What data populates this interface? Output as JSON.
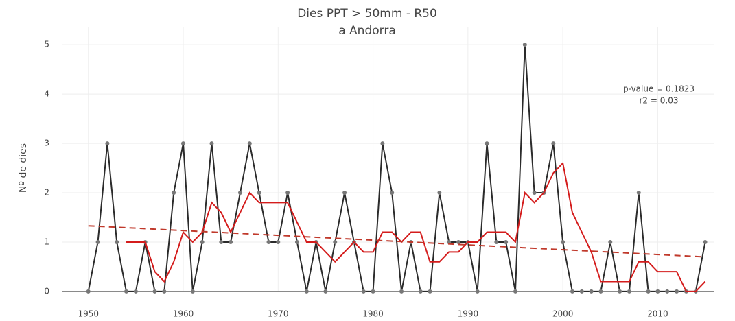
{
  "chart_data": {
    "type": "line",
    "title": "Dies PPT > 50mm - R50",
    "subtitle": "a Andorra",
    "y_label": "Nº de dies",
    "annotations": [
      "p-value = 0.1823",
      "r2 = 0.03"
    ],
    "grid": true,
    "xlim": [
      1947.2,
      2015.9
    ],
    "xticks": [
      1950,
      1960,
      1970,
      1980,
      1990,
      2000,
      2010
    ],
    "ylim": [
      -0.21,
      5.35
    ],
    "yticks": [
      0,
      1,
      2,
      3,
      4,
      5
    ],
    "series": [
      {
        "color": "#2b2b2b",
        "markers": true,
        "dash": false,
        "x": [
          1950,
          1951,
          1952,
          1953,
          1954,
          1955,
          1956,
          1957,
          1958,
          1959,
          1960,
          1961,
          1962,
          1963,
          1964,
          1965,
          1966,
          1967,
          1968,
          1969,
          1970,
          1971,
          1972,
          1973,
          1974,
          1975,
          1976,
          1977,
          1978,
          1979,
          1980,
          1981,
          1982,
          1983,
          1984,
          1985,
          1986,
          1987,
          1988,
          1989,
          1990,
          1991,
          1992,
          1993,
          1994,
          1995,
          1996,
          1997,
          1998,
          1999,
          2000,
          2001,
          2002,
          2003,
          2004,
          2005,
          2006,
          2007,
          2008,
          2009,
          2010,
          2011,
          2012,
          2013,
          2014,
          2015
        ],
        "values": [
          0,
          1,
          3,
          1,
          0,
          0,
          1,
          0,
          0,
          2,
          3,
          0,
          1,
          3,
          1,
          1,
          2,
          3,
          2,
          1,
          1,
          2,
          1,
          0,
          1,
          0,
          1,
          2,
          1,
          0,
          0,
          3,
          2,
          0,
          1,
          0,
          0,
          2,
          1,
          1,
          1,
          0,
          3,
          1,
          1,
          0,
          5,
          2,
          2,
          3,
          1,
          0,
          0,
          0,
          0,
          1,
          0,
          0,
          2,
          0,
          0,
          0,
          0,
          0,
          0,
          1
        ]
      },
      {
        "color": "#d41c1c",
        "markers": false,
        "dash": false,
        "x": [
          1954,
          1955,
          1956,
          1957,
          1958,
          1959,
          1960,
          1961,
          1962,
          1963,
          1964,
          1965,
          1966,
          1967,
          1968,
          1969,
          1970,
          1971,
          1972,
          1973,
          1974,
          1975,
          1976,
          1977,
          1978,
          1979,
          1980,
          1981,
          1982,
          1983,
          1984,
          1985,
          1986,
          1987,
          1988,
          1989,
          1990,
          1991,
          1992,
          1993,
          1994,
          1995,
          1996,
          1997,
          1998,
          1999,
          2000,
          2001,
          2002,
          2003,
          2004,
          2005,
          2006,
          2007,
          2008,
          2009,
          2010,
          2011,
          2012,
          2013,
          2014,
          2015
        ],
        "values": [
          1,
          1,
          1,
          0.4,
          0.2,
          0.6,
          1.2,
          1,
          1.2,
          1.8,
          1.6,
          1.2,
          1.6,
          2,
          1.8,
          1.8,
          1.8,
          1.8,
          1.4,
          1,
          1,
          0.8,
          0.6,
          0.8,
          1,
          0.8,
          0.8,
          1.2,
          1.2,
          1,
          1.2,
          1.2,
          0.6,
          0.6,
          0.8,
          0.8,
          1,
          1,
          1.2,
          1.2,
          1.2,
          1,
          2,
          1.8,
          2,
          2.4,
          2.6,
          1.6,
          1.2,
          0.8,
          0.2,
          0.2,
          0.2,
          0.2,
          0.6,
          0.6,
          0.4,
          0.4,
          0.4,
          0,
          0,
          0.2
        ]
      },
      {
        "color": "#c0392b",
        "markers": false,
        "dash": true,
        "x": [
          1950,
          2015
        ],
        "values": [
          1.33,
          0.7
        ]
      }
    ]
  }
}
